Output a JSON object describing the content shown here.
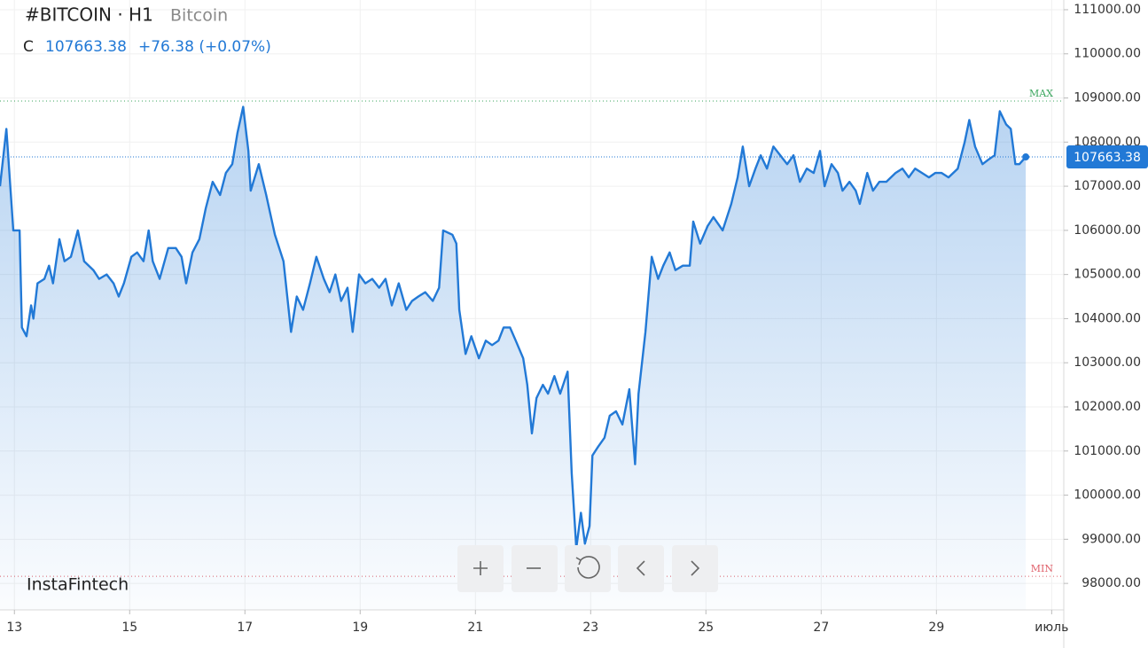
{
  "chart_data": {
    "type": "area",
    "title": "#BITCOIN · H1",
    "subtitle": "Bitcoin",
    "ohlc_label": "C",
    "last_price": 107663.38,
    "change_label": "+76.38 (+0.07%)",
    "max_label": "MAX",
    "max_line": 108930,
    "min_label": "MIN",
    "min_line": 98160,
    "brand": "InstaFintech",
    "color": "#2279d6",
    "grid": true,
    "xlim": [
      12.75,
      31.21
    ],
    "xticks": [
      13,
      15,
      17,
      19,
      21,
      23,
      25,
      27,
      29,
      {
        "value": 31,
        "label": "июль"
      }
    ],
    "ylim": [
      97400,
      111220
    ],
    "yticks": [
      {
        "value": 98000,
        "label": "98000.00"
      },
      {
        "value": 99000,
        "label": "99000.00"
      },
      {
        "value": 100000,
        "label": "100000.00"
      },
      {
        "value": 101000,
        "label": "101000.00"
      },
      {
        "value": 102000,
        "label": "102000.00"
      },
      {
        "value": 103000,
        "label": "103000.00"
      },
      {
        "value": 104000,
        "label": "104000.00"
      },
      {
        "value": 105000,
        "label": "105000.00"
      },
      {
        "value": 106000,
        "label": "106000.00"
      },
      {
        "value": 107000,
        "label": "107000.00"
      },
      {
        "value": 108000,
        "label": "108000.00"
      },
      {
        "value": 109000,
        "label": "109000.00"
      },
      {
        "value": 110000,
        "label": "110000.00"
      },
      {
        "value": 111000,
        "label": "111000.00"
      }
    ],
    "series": [
      {
        "name": "Bitcoin",
        "color": "#2279d6",
        "x": [
          12.75,
          12.86,
          12.98,
          13.09,
          13.13,
          13.21,
          13.29,
          13.33,
          13.4,
          13.52,
          13.6,
          13.67,
          13.78,
          13.87,
          13.98,
          14.1,
          14.21,
          14.37,
          14.47,
          14.6,
          14.72,
          14.81,
          14.9,
          15.03,
          15.13,
          15.24,
          15.33,
          15.4,
          15.52,
          15.67,
          15.8,
          15.9,
          15.98,
          16.09,
          16.21,
          16.32,
          16.44,
          16.57,
          16.67,
          16.78,
          16.87,
          16.97,
          17.06,
          17.1,
          17.24,
          17.37,
          17.52,
          17.67,
          17.8,
          17.9,
          18.01,
          18.13,
          18.24,
          18.37,
          18.47,
          18.57,
          18.67,
          18.78,
          18.87,
          18.98,
          19.09,
          19.21,
          19.33,
          19.44,
          19.55,
          19.67,
          19.8,
          19.9,
          20.01,
          20.13,
          20.26,
          20.37,
          20.44,
          20.6,
          20.67,
          20.72,
          20.83,
          20.93,
          21.06,
          21.18,
          21.29,
          21.4,
          21.49,
          21.6,
          21.7,
          21.83,
          21.9,
          21.98,
          22.06,
          22.17,
          22.26,
          22.37,
          22.47,
          22.6,
          22.67,
          22.75,
          22.83,
          22.9,
          22.98,
          23.03,
          23.13,
          23.24,
          23.33,
          23.44,
          23.55,
          23.67,
          23.77,
          23.83,
          23.95,
          24.06,
          24.17,
          24.26,
          24.37,
          24.47,
          24.6,
          24.72,
          24.78,
          24.9,
          25.03,
          25.13,
          25.29,
          25.44,
          25.55,
          25.64,
          25.75,
          25.86,
          25.95,
          26.06,
          26.17,
          26.29,
          26.41,
          26.52,
          26.63,
          26.75,
          26.87,
          26.98,
          27.06,
          27.18,
          27.29,
          27.37,
          27.49,
          27.6,
          27.67,
          27.8,
          27.9,
          28.01,
          28.13,
          28.29,
          28.41,
          28.52,
          28.63,
          28.75,
          28.87,
          28.98,
          29.09,
          29.21,
          29.37,
          29.49,
          29.57,
          29.67,
          29.8,
          29.9,
          30.01,
          30.1,
          30.21,
          30.29,
          30.37,
          30.44,
          30.55
        ],
        "values": [
          107000,
          108300,
          106000,
          106000,
          103800,
          103600,
          104300,
          104000,
          104800,
          104900,
          105200,
          104800,
          105800,
          105300,
          105400,
          106000,
          105300,
          105100,
          104900,
          105000,
          104800,
          104500,
          104800,
          105400,
          105500,
          105300,
          106000,
          105300,
          104900,
          105600,
          105600,
          105400,
          104800,
          105500,
          105800,
          106500,
          107100,
          106800,
          107300,
          107500,
          108200,
          108800,
          107800,
          106900,
          107500,
          106800,
          105900,
          105300,
          103700,
          104500,
          104200,
          104800,
          105400,
          104900,
          104600,
          105000,
          104400,
          104700,
          103700,
          105000,
          104800,
          104900,
          104700,
          104900,
          104300,
          104800,
          104200,
          104400,
          104500,
          104600,
          104400,
          104700,
          106000,
          105900,
          105700,
          104200,
          103200,
          103600,
          103100,
          103500,
          103400,
          103500,
          103800,
          103800,
          103500,
          103100,
          102500,
          101400,
          102200,
          102500,
          102300,
          102700,
          102300,
          102800,
          100500,
          98800,
          99600,
          98900,
          99300,
          100900,
          101100,
          101300,
          101800,
          101900,
          101600,
          102400,
          100700,
          102300,
          103700,
          105400,
          104900,
          105200,
          105500,
          105100,
          105200,
          105200,
          106200,
          105700,
          106100,
          106300,
          106000,
          106600,
          107200,
          107900,
          107000,
          107400,
          107700,
          107400,
          107900,
          107700,
          107500,
          107700,
          107100,
          107400,
          107300,
          107800,
          107000,
          107500,
          107300,
          106900,
          107100,
          106900,
          106600,
          107300,
          106900,
          107100,
          107100,
          107300,
          107400,
          107200,
          107400,
          107300,
          107200,
          107300,
          107300,
          107200,
          107400,
          108000,
          108500,
          107900,
          107500,
          107600,
          107700,
          108700,
          108400,
          108300,
          107500,
          107500,
          107663.38
        ]
      }
    ]
  }
}
